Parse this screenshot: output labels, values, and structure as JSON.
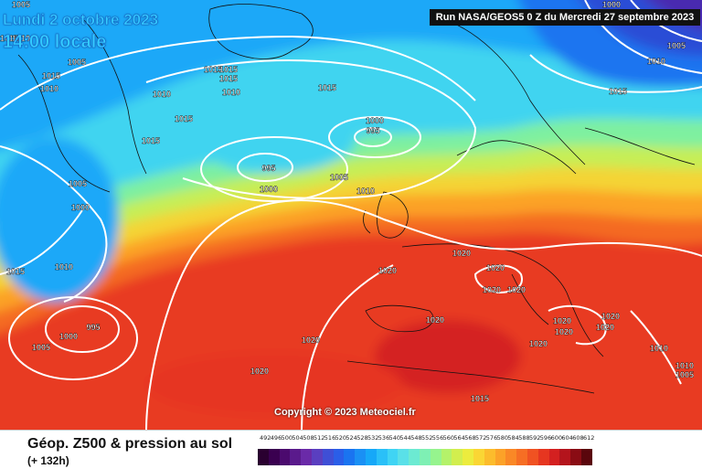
{
  "header": {
    "date": "Lundi 2 octobre 2023",
    "local_time": "14:00 locale",
    "run_info": "Run NASA/GEOS5 0 Z du Mercredi 27 septembre 2023"
  },
  "copyright": "Copyright © 2023 Meteociel.fr",
  "footer": {
    "product": "Géop. Z500 & pression au sol",
    "lead_time": "(+ 132h)"
  },
  "legend": {
    "unit_note": "",
    "levels": [
      "492",
      "496",
      "500",
      "504",
      "508",
      "512",
      "516",
      "520",
      "524",
      "528",
      "532",
      "536",
      "540",
      "544",
      "548",
      "552",
      "556",
      "560",
      "564",
      "568",
      "572",
      "576",
      "580",
      "584",
      "588",
      "592",
      "596",
      "600",
      "604",
      "608",
      "612"
    ],
    "colors": [
      "#2a0030",
      "#3a0050",
      "#4b0a6e",
      "#5a1a8c",
      "#6a2aa8",
      "#5a3fc0",
      "#3f4fd6",
      "#2a5ee8",
      "#1a74f0",
      "#1a90f4",
      "#16a8f8",
      "#2ac0f8",
      "#40d4f4",
      "#5ae0e8",
      "#6cead2",
      "#7ef0b4",
      "#96f48e",
      "#b4f26a",
      "#d2ee4e",
      "#ecec3e",
      "#fad634",
      "#fcbc2c",
      "#fca228",
      "#fa8826",
      "#f66e24",
      "#f05222",
      "#e63620",
      "#d42020",
      "#b4141c",
      "#8a0c14",
      "#5a060c"
    ]
  },
  "map": {
    "isobar_labels": [
      {
        "text": "1005",
        "id": "isobar-1005-a"
      },
      {
        "text": "1015",
        "id": "isobar-1015-a"
      },
      {
        "text": "1010",
        "id": "isobar-1010-a"
      },
      {
        "text": "1015",
        "id": "isobar-1015-b"
      },
      {
        "text": "1010",
        "id": "isobar-1010-b"
      },
      {
        "text": "1005",
        "id": "isobar-1005-b"
      },
      {
        "text": "1010",
        "id": "isobar-1010-c"
      },
      {
        "text": "1015",
        "id": "isobar-1015-c"
      },
      {
        "text": "1015",
        "id": "isobar-1015-d"
      },
      {
        "text": "1015",
        "id": "isobar-1015-e"
      },
      {
        "text": "1010",
        "id": "isobar-1010-d"
      },
      {
        "text": "1015",
        "id": "isobar-1015-f"
      },
      {
        "text": "1015",
        "id": "isobar-1015-g"
      },
      {
        "text": "1000",
        "id": "isobar-1000-a"
      },
      {
        "text": "995",
        "id": "isobar-995-a"
      },
      {
        "text": "995",
        "id": "isobar-995-b"
      },
      {
        "text": "1000",
        "id": "isobar-1000-b"
      },
      {
        "text": "1005",
        "id": "isobar-1005-c"
      },
      {
        "text": "1010",
        "id": "isobar-1010-e"
      },
      {
        "text": "1015",
        "id": "isobar-1015-h"
      },
      {
        "text": "1005",
        "id": "isobar-1005-d"
      },
      {
        "text": "1000",
        "id": "isobar-1000-c"
      },
      {
        "text": "1010",
        "id": "isobar-1010-f"
      },
      {
        "text": "1015",
        "id": "isobar-1015-i"
      },
      {
        "text": "995",
        "id": "isobar-995-c"
      },
      {
        "text": "1000",
        "id": "isobar-1000-d"
      },
      {
        "text": "1005",
        "id": "isobar-1005-e"
      },
      {
        "text": "1020",
        "id": "isobar-1020-a"
      },
      {
        "text": "1020",
        "id": "isobar-1020-b"
      },
      {
        "text": "1020",
        "id": "isobar-1020-c"
      },
      {
        "text": "1020",
        "id": "isobar-1020-d"
      },
      {
        "text": "1020",
        "id": "isobar-1020-e"
      },
      {
        "text": "1020",
        "id": "isobar-1020-f"
      },
      {
        "text": "1020",
        "id": "isobar-1020-g"
      },
      {
        "text": "1020",
        "id": "isobar-1020-h"
      },
      {
        "text": "1020",
        "id": "isobar-1020-i"
      },
      {
        "text": "1020",
        "id": "isobar-1020-j"
      },
      {
        "text": "1020",
        "id": "isobar-1020-k"
      },
      {
        "text": "1020",
        "id": "isobar-1020-l"
      },
      {
        "text": "1020",
        "id": "isobar-1020-m"
      },
      {
        "text": "1015",
        "id": "isobar-1015-j"
      },
      {
        "text": "1010",
        "id": "isobar-1010-g"
      },
      {
        "text": "1010",
        "id": "isobar-1010-h"
      },
      {
        "text": "1005",
        "id": "isobar-1005-f"
      },
      {
        "text": "1000",
        "id": "isobar-1000-e"
      },
      {
        "text": "1005",
        "id": "isobar-1005-g"
      },
      {
        "text": "1010",
        "id": "isobar-1010-i"
      },
      {
        "text": "1015",
        "id": "isobar-1015-k"
      }
    ]
  }
}
